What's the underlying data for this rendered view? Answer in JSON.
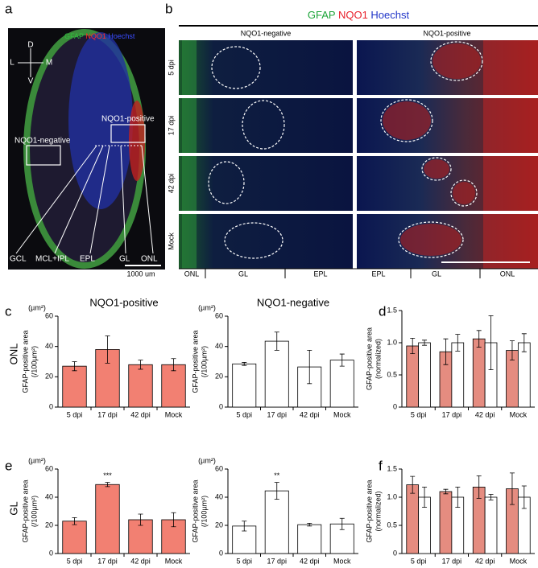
{
  "figure": {
    "panel_labels": [
      "a",
      "b",
      "c",
      "d",
      "e",
      "f"
    ],
    "stain": [
      "GFAP",
      "NQO1",
      "Hoechst"
    ],
    "a": {
      "compass": [
        "D",
        "L",
        "M",
        "V"
      ],
      "boxes": [
        "NQO1-negative",
        "NQO1-positive"
      ],
      "layers": [
        "GCL",
        "MCL+IPL",
        "EPL",
        "GL",
        "ONL"
      ],
      "scale_bar": "1000 um"
    },
    "b": {
      "columns": [
        "NQO1-negative",
        "NQO1-positive"
      ],
      "rows": [
        "5 dpi",
        "17 dpi",
        "42 dpi",
        "Mock"
      ],
      "bottom_left": [
        "ONL",
        "GL",
        "EPL"
      ],
      "bottom_right": [
        "EPL",
        "GL",
        "ONL"
      ]
    },
    "row_labels": [
      "ONL",
      "GL"
    ]
  },
  "chart_data": [
    {
      "type": "bar",
      "title": "NQO1-positive",
      "unit": "(µm²)",
      "ylabel": [
        "GFAP-positive area",
        "(/100µm²)"
      ],
      "categories": [
        "5 dpi",
        "17 dpi",
        "42 dpi",
        "Mock"
      ],
      "values": [
        27,
        38,
        28,
        28
      ],
      "errors": [
        3,
        9,
        3,
        4
      ],
      "color": "#f28072",
      "ylim": [
        0,
        60
      ],
      "yticks": [
        0,
        20,
        40,
        60
      ]
    },
    {
      "type": "bar",
      "title": "NQO1-negative",
      "unit": "(µm²)",
      "ylabel": [
        "GFAP-positive area",
        "(/100µm²)"
      ],
      "categories": [
        "5 dpi",
        "17 dpi",
        "42 dpi",
        "Mock"
      ],
      "values": [
        28.5,
        43.5,
        26.5,
        31
      ],
      "errors": [
        1,
        6,
        11,
        4
      ],
      "color": "#ffffff",
      "ylim": [
        0,
        60
      ],
      "yticks": [
        0,
        20,
        40,
        60
      ]
    },
    {
      "type": "grouped-bar",
      "ylabel": [
        "GFAP-positive area",
        "(normalized)"
      ],
      "categories": [
        "5 dpi",
        "17 dpi",
        "42 dpi",
        "Mock"
      ],
      "series": [
        {
          "color": "#e58c80",
          "values": [
            0.95,
            0.86,
            1.06,
            0.88
          ],
          "errors": [
            0.12,
            0.2,
            0.13,
            0.15
          ]
        },
        {
          "color": "#ffffff",
          "values": [
            1.0,
            1.0,
            1.0,
            1.0
          ],
          "errors": [
            0.04,
            0.13,
            0.42,
            0.14
          ]
        }
      ],
      "ylim": [
        0,
        1.5
      ],
      "yticks": [
        0,
        0.5,
        {
          "value": 1,
          "label": "1.0"
        },
        1.5
      ]
    },
    {
      "type": "bar",
      "unit": "(µm²)",
      "ylabel": [
        "GFAP-positive area",
        "(/100µm²)"
      ],
      "categories": [
        "5 dpi",
        "17 dpi",
        "42 dpi",
        "Mock"
      ],
      "values": [
        23,
        49,
        24,
        24
      ],
      "errors": [
        2.5,
        1.5,
        4,
        5
      ],
      "annotations": [
        null,
        "***",
        null,
        null
      ],
      "color": "#f28072",
      "ylim": [
        0,
        60
      ],
      "yticks": [
        0,
        20,
        40,
        60
      ]
    },
    {
      "type": "bar",
      "unit": "(µm²)",
      "ylabel": [
        "GFAP-positive area",
        "(/100µm²)"
      ],
      "categories": [
        "5 dpi",
        "17 dpi",
        "42 dpi",
        "Mock"
      ],
      "values": [
        19.5,
        44.5,
        20.5,
        21
      ],
      "errors": [
        3.5,
        6,
        1,
        4
      ],
      "annotations": [
        null,
        "**",
        null,
        null
      ],
      "color": "#ffffff",
      "ylim": [
        0,
        60
      ],
      "yticks": [
        0,
        20,
        40,
        60
      ]
    },
    {
      "type": "grouped-bar",
      "ylabel": [
        "GFAP-positive area",
        "(normalized)"
      ],
      "categories": [
        "5 dpi",
        "17 dpi",
        "42 dpi",
        "Mock"
      ],
      "series": [
        {
          "color": "#e58c80",
          "values": [
            1.22,
            1.1,
            1.18,
            1.15
          ],
          "errors": [
            0.15,
            0.04,
            0.2,
            0.28
          ]
        },
        {
          "color": "#ffffff",
          "values": [
            1.0,
            1.0,
            1.0,
            1.0
          ],
          "errors": [
            0.18,
            0.18,
            0.05,
            0.2
          ]
        }
      ],
      "ylim": [
        0,
        1.5
      ],
      "yticks": [
        0,
        0.5,
        {
          "value": 1,
          "label": "1.0"
        },
        1.5
      ]
    }
  ]
}
